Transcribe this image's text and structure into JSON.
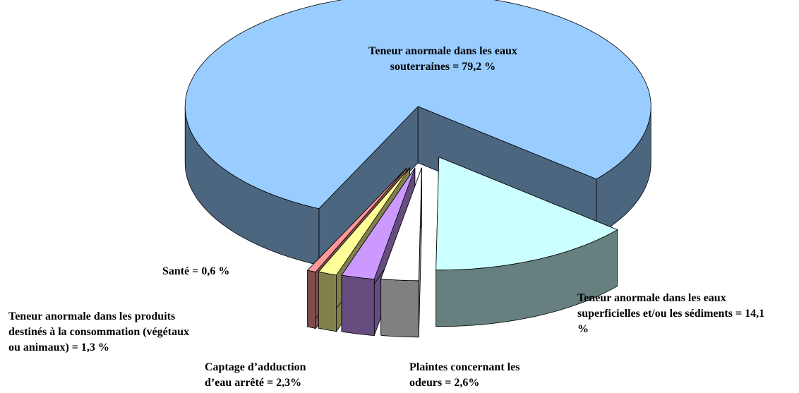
{
  "chart_data": {
    "type": "pie3d",
    "value_labels": [
      "Teneur anormale dans les eaux souterraines = 79,2 %",
      "Teneur anormale dans les eaux superficielles et/ou les sédiments = 14,1 %",
      "Plaintes concernant les odeurs = 2,6%",
      "Captage d’adduction d’eau arrêté = 2,3%",
      "Teneur anormale dans les produits destinés à la consommation (végétaux ou animaux) = 1,3 %",
      "Santé = 0,6 %"
    ],
    "values": [
      79.2,
      14.1,
      2.6,
      2.3,
      1.3,
      0.6
    ],
    "colors": [
      "#99ccff",
      "#ccffff",
      "#ffffff",
      "#cc99ff",
      "#ffff99",
      "#ff9999"
    ]
  }
}
